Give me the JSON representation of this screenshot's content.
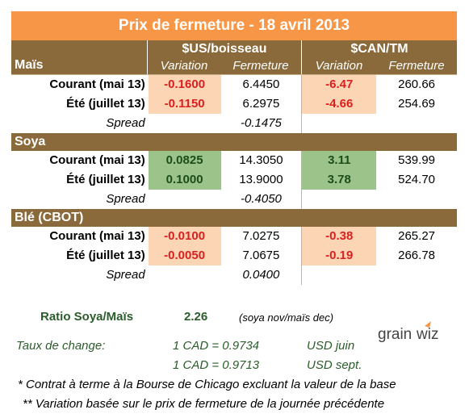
{
  "title": "Prix de fermeture - 18 avril 2013",
  "headers": {
    "usd_group": "$US/boisseau",
    "cad_group": "$CAN/TM",
    "variation": "Variation",
    "fermeture": "Fermeture"
  },
  "sections": [
    {
      "name": "Maïs",
      "rows": [
        {
          "label": "Courant (mai 13)",
          "usd_var": "-0.1600",
          "usd_close": "6.4450",
          "cad_var": "-6.47",
          "cad_close": "260.66"
        },
        {
          "label": "Été (juillet 13)",
          "usd_var": "-0.1150",
          "usd_close": "6.2975",
          "cad_var": "-4.66",
          "cad_close": "254.69"
        }
      ],
      "spread_label": "Spread",
      "spread": "-0.1475"
    },
    {
      "name": "Soya",
      "rows": [
        {
          "label": "Courant (mai 13)",
          "usd_var": "0.0825",
          "usd_close": "14.3050",
          "cad_var": "3.11",
          "cad_close": "539.99"
        },
        {
          "label": "Été (juillet 13)",
          "usd_var": "0.1000",
          "usd_close": "13.9000",
          "cad_var": "3.78",
          "cad_close": "524.70"
        }
      ],
      "spread_label": "Spread",
      "spread": "-0.4050"
    },
    {
      "name": "Blé (CBOT)",
      "rows": [
        {
          "label": "Courant (mai 13)",
          "usd_var": "-0.0100",
          "usd_close": "7.0275",
          "cad_var": "-0.38",
          "cad_close": "265.27"
        },
        {
          "label": "Été (juillet 13)",
          "usd_var": "-0.0050",
          "usd_close": "7.0675",
          "cad_var": "-0.19",
          "cad_close": "266.78"
        }
      ],
      "spread_label": "Spread",
      "spread": "0.0400"
    }
  ],
  "ratio": {
    "label": "Ratio Soya/Maïs",
    "value": "2.26",
    "note": "(soya nov/maïs dec)"
  },
  "exchange": {
    "label": "Taux de change:",
    "rate1": "1 CAD =  0.9734",
    "rate1_unit": "USD juin",
    "rate2": "1 CAD =  0.9713",
    "rate2_unit": "USD sept."
  },
  "logo_text": "grainwiz",
  "notes": {
    "note1": "* Contrat à terme à la Bourse de Chicago excluant la valeur de la base",
    "note2": "** Variation basée sur le prix de fermeture de la journée précédente"
  },
  "colors": {
    "header_bg": "#8a6a3a",
    "title_bg": "#f79646",
    "negative": "#d92020",
    "positive": "#1a4d1a",
    "neg_fill": "#fcd5b4",
    "pos_fill": "#9bc38a"
  }
}
